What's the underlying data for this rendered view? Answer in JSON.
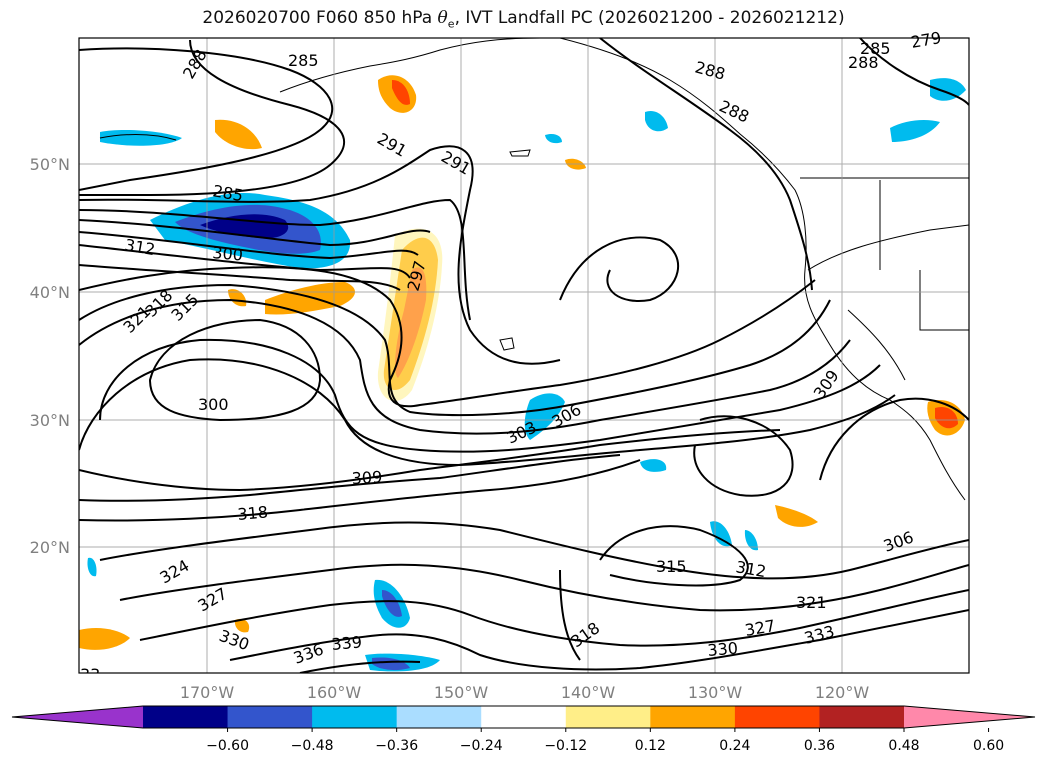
{
  "title_prefix": "2026020700 F060 850 hPa ",
  "title_symbol": "θ",
  "title_sub": "e",
  "title_suffix": ", IVT Landfall PC (2026021200 - 2026021212)",
  "lat_labels": [
    "50°N",
    "40°N",
    "30°N",
    "20°N"
  ],
  "lon_labels": [
    "170°W",
    "160°W",
    "150°W",
    "140°W",
    "130°W",
    "120°W"
  ],
  "contour_labels": [
    "288",
    "285",
    "288",
    "291",
    "288",
    "291",
    "285",
    "300",
    "312",
    "297",
    "321",
    "318",
    "315",
    "300",
    "303",
    "306",
    "309",
    "309",
    "318",
    "324",
    "327",
    "330",
    "336",
    "339",
    "315",
    "312",
    "321",
    "327",
    "330",
    "333",
    "306",
    "318",
    "285",
    "279",
    "288",
    "33"
  ],
  "colorbar": {
    "ticks": [
      "−0.60",
      "−0.48",
      "−0.36",
      "−0.24",
      "−0.12",
      "0.12",
      "0.24",
      "0.36",
      "0.48",
      "0.60"
    ],
    "colors": [
      "#9933cc",
      "#000088",
      "#3355cc",
      "#00bbee",
      "#aaddff",
      "#ffffff",
      "#ffee88",
      "#ffa500",
      "#ff4400",
      "#b22222",
      "#ff88aa"
    ]
  }
}
